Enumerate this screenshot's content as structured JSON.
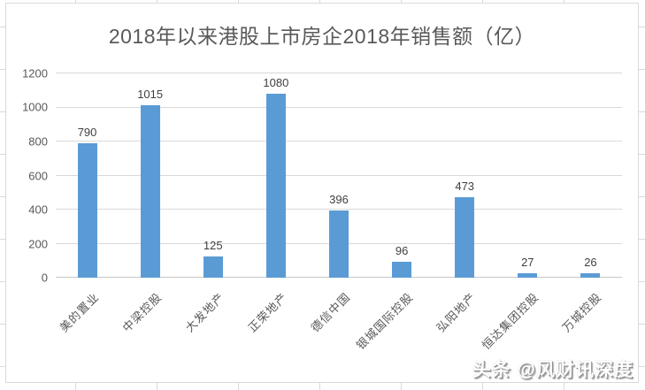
{
  "chart_data": {
    "type": "bar",
    "title": "2018年以来港股上市房企2018年销售额（亿）",
    "categories": [
      "美的置业",
      "中梁控股",
      "大发地产",
      "正荣地产",
      "德信中国",
      "银城国际控股",
      "弘阳地产",
      "恒达集团控股",
      "万城控股"
    ],
    "values": [
      790,
      1015,
      125,
      1080,
      396,
      96,
      473,
      27,
      26
    ],
    "xlabel": "",
    "ylabel": "",
    "ylim": [
      0,
      1200
    ],
    "yticks": [
      0,
      200,
      400,
      600,
      800,
      1000,
      1200
    ],
    "grid": true,
    "legend": false,
    "bar_color": "#5b9bd5"
  },
  "watermark": {
    "text": "头条 @风财讯深度"
  },
  "colors": {
    "bar": "#5b9bd5",
    "gridline": "#d9d9d9",
    "axis_line": "#c6c6c6",
    "title_text": "#595959",
    "tick_text": "#595959",
    "value_text": "#404040",
    "background": "#ffffff"
  }
}
